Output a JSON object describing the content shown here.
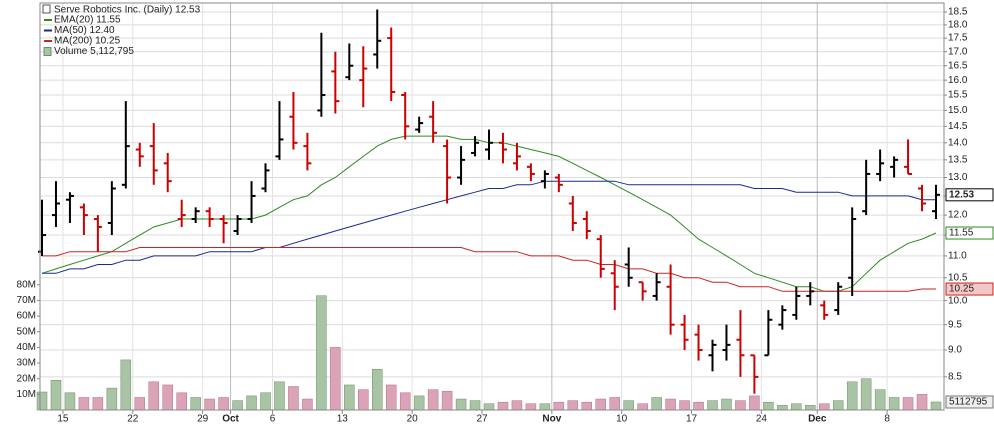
{
  "chart_data": {
    "type": "ohlc",
    "title": "Serve Robotics Inc. (Daily) 12.53",
    "categories": [
      null,
      null,
      "15",
      null,
      null,
      null,
      null,
      "22",
      null,
      null,
      null,
      null,
      "29",
      null,
      "Oct",
      null,
      null,
      "6",
      null,
      null,
      null,
      null,
      "13",
      null,
      null,
      null,
      null,
      "20",
      null,
      null,
      null,
      null,
      "27",
      null,
      null,
      null,
      null,
      "Nov",
      null,
      null,
      null,
      null,
      "10",
      null,
      null,
      null,
      null,
      "17",
      null,
      null,
      null,
      null,
      "24",
      null,
      null,
      null,
      "Dec",
      null,
      null,
      null,
      null,
      "8",
      null,
      null,
      null
    ],
    "open": [
      11.1,
      12.0,
      12.4,
      12.2,
      11.9,
      11.8,
      12.8,
      13.8,
      13.9,
      13.4,
      11.9,
      11.9,
      12.1,
      11.9,
      11.6,
      11.9,
      12.7,
      13.6,
      14.8,
      13.9,
      15.0,
      16.3,
      16.1,
      16.0,
      16.9,
      17.5,
      15.5,
      14.4,
      14.8,
      13.9,
      13.0,
      13.7,
      13.8,
      14.0,
      13.4,
      13.3,
      12.9,
      13.0,
      12.3,
      11.9,
      11.4,
      10.6,
      10.8,
      10.4,
      10.1,
      10.3,
      9.5,
      9.3,
      8.9,
      9.0,
      9.2,
      8.9,
      8.9,
      9.5,
      9.7,
      10.1,
      9.9,
      9.8,
      10.5,
      12.1,
      13.1,
      13.3,
      13.3,
      12.7,
      12.1
    ],
    "high": [
      12.4,
      12.9,
      12.6,
      12.3,
      12.0,
      12.9,
      15.3,
      14.0,
      14.6,
      13.7,
      12.4,
      12.2,
      12.2,
      12.0,
      12.0,
      12.9,
      13.4,
      15.3,
      15.6,
      14.3,
      17.7,
      17.0,
      17.3,
      17.2,
      18.6,
      17.9,
      15.6,
      14.8,
      15.3,
      14.1,
      13.9,
      14.2,
      14.4,
      14.3,
      14.0,
      13.4,
      13.2,
      13.1,
      12.5,
      12.1,
      11.5,
      10.9,
      11.2,
      10.4,
      10.6,
      10.8,
      9.7,
      9.5,
      9.2,
      9.5,
      9.8,
      8.9,
      9.8,
      9.9,
      10.3,
      10.4,
      10.0,
      10.4,
      12.2,
      13.5,
      13.8,
      13.6,
      14.1,
      12.8,
      12.8
    ],
    "low": [
      11.0,
      11.7,
      11.8,
      11.5,
      11.1,
      11.5,
      12.7,
      13.3,
      12.8,
      12.6,
      11.7,
      11.8,
      11.7,
      11.3,
      11.5,
      11.8,
      12.6,
      13.5,
      13.8,
      13.2,
      14.8,
      14.9,
      16.0,
      15.1,
      16.4,
      15.3,
      14.1,
      14.3,
      14.0,
      12.3,
      12.8,
      13.6,
      13.5,
      13.4,
      13.2,
      12.9,
      12.7,
      12.6,
      11.6,
      11.4,
      10.5,
      9.8,
      10.3,
      10.0,
      10.0,
      9.3,
      9.0,
      8.8,
      8.6,
      8.8,
      8.5,
      8.2,
      8.9,
      9.4,
      9.6,
      9.9,
      9.6,
      9.7,
      10.1,
      12.0,
      12.9,
      13.0,
      13.1,
      12.1,
      11.9
    ],
    "close": [
      11.5,
      12.3,
      12.5,
      12.0,
      11.7,
      12.7,
      13.9,
      13.6,
      13.2,
      12.9,
      12.0,
      12.1,
      11.9,
      11.8,
      11.9,
      12.5,
      13.2,
      14.1,
      14.0,
      13.4,
      15.5,
      15.3,
      16.5,
      16.4,
      17.4,
      15.6,
      14.5,
      14.6,
      14.3,
      13.0,
      13.5,
      14.0,
      14.0,
      13.8,
      13.6,
      13.1,
      13.1,
      12.8,
      11.8,
      11.6,
      10.7,
      10.3,
      10.5,
      10.2,
      10.4,
      9.5,
      9.2,
      9.0,
      9.1,
      9.1,
      8.9,
      8.5,
      9.6,
      9.8,
      10.1,
      10.2,
      9.7,
      10.3,
      11.9,
      13.1,
      13.4,
      13.5,
      13.1,
      12.3,
      12.53
    ],
    "up_color": "#000000",
    "down_color": "#cc0000",
    "overlays": [
      {
        "label": "EMA(20) 11.55",
        "color": "#2e8b22",
        "values": [
          10.6,
          10.7,
          10.8,
          10.9,
          11.0,
          11.1,
          11.3,
          11.5,
          11.7,
          11.8,
          11.9,
          11.9,
          11.9,
          11.9,
          11.9,
          11.9,
          12.0,
          12.2,
          12.4,
          12.5,
          12.8,
          13.0,
          13.3,
          13.6,
          13.9,
          14.1,
          14.2,
          14.2,
          14.2,
          14.2,
          14.1,
          14.1,
          14.0,
          14.0,
          13.9,
          13.8,
          13.7,
          13.6,
          13.4,
          13.2,
          13.0,
          12.8,
          12.6,
          12.4,
          12.2,
          12.0,
          11.7,
          11.4,
          11.2,
          11.0,
          10.8,
          10.6,
          10.5,
          10.4,
          10.3,
          10.3,
          10.2,
          10.2,
          10.3,
          10.6,
          10.9,
          11.1,
          11.3,
          11.4,
          11.55
        ],
        "tag": true
      },
      {
        "label": "MA(50) 12.40",
        "color": "#1c2a8c",
        "values": [
          10.6,
          10.6,
          10.7,
          10.7,
          10.8,
          10.8,
          10.9,
          10.9,
          11.0,
          11.0,
          11.0,
          11.0,
          11.1,
          11.1,
          11.1,
          11.1,
          11.2,
          11.2,
          11.3,
          11.4,
          11.5,
          11.6,
          11.7,
          11.8,
          11.9,
          12.0,
          12.1,
          12.2,
          12.3,
          12.4,
          12.5,
          12.6,
          12.7,
          12.7,
          12.8,
          12.8,
          12.9,
          12.9,
          12.9,
          12.9,
          12.9,
          12.9,
          12.8,
          12.8,
          12.8,
          12.8,
          12.8,
          12.8,
          12.8,
          12.8,
          12.8,
          12.7,
          12.7,
          12.7,
          12.6,
          12.6,
          12.6,
          12.6,
          12.5,
          12.5,
          12.5,
          12.5,
          12.5,
          12.4,
          12.4
        ],
        "tag": false
      },
      {
        "label": "MA(200) 10.25",
        "color": "#cc2222",
        "values": [
          11.0,
          11.0,
          11.1,
          11.1,
          11.1,
          11.1,
          11.1,
          11.2,
          11.2,
          11.2,
          11.2,
          11.2,
          11.2,
          11.2,
          11.2,
          11.2,
          11.2,
          11.2,
          11.2,
          11.2,
          11.2,
          11.2,
          11.2,
          11.2,
          11.2,
          11.2,
          11.2,
          11.2,
          11.2,
          11.2,
          11.2,
          11.1,
          11.1,
          11.1,
          11.1,
          11.0,
          11.0,
          11.0,
          10.9,
          10.9,
          10.8,
          10.8,
          10.7,
          10.7,
          10.6,
          10.6,
          10.5,
          10.5,
          10.4,
          10.4,
          10.3,
          10.3,
          10.3,
          10.2,
          10.2,
          10.2,
          10.2,
          10.2,
          10.2,
          10.2,
          10.2,
          10.2,
          10.2,
          10.25,
          10.25
        ],
        "tag": true
      }
    ],
    "volume": {
      "label": "Volume 5,112,795",
      "up_color": "#a9c4a4",
      "down_color": "#dba3b7",
      "values": [
        11500000,
        19000000,
        11000000,
        8000000,
        8000000,
        14000000,
        32000000,
        8000000,
        18000000,
        16000000,
        11000000,
        8000000,
        7000000,
        8000000,
        6000000,
        9000000,
        11000000,
        18000000,
        15000000,
        7000000,
        73000000,
        40000000,
        16000000,
        13000000,
        26000000,
        16000000,
        11000000,
        9000000,
        13000000,
        12000000,
        7000000,
        6000000,
        4000000,
        5000000,
        6000000,
        4000000,
        4000000,
        5000000,
        6000000,
        5000000,
        7000000,
        8000000,
        6000000,
        4000000,
        8000000,
        7000000,
        6000000,
        5000000,
        6000000,
        7000000,
        6000000,
        9000000,
        5000000,
        3000000,
        4000000,
        3000000,
        4000000,
        6000000,
        18000000,
        20000000,
        13000000,
        8000000,
        8000000,
        10000000,
        5112795
      ],
      "ylim": [
        0,
        260000000
      ],
      "yticks": [
        {
          "value": 10000000,
          "label": "10M"
        },
        {
          "value": 20000000,
          "label": "20M"
        },
        {
          "value": 30000000,
          "label": "30M"
        },
        {
          "value": 40000000,
          "label": "40M"
        },
        {
          "value": 50000000,
          "label": "50M"
        },
        {
          "value": 60000000,
          "label": "60M"
        },
        {
          "value": 70000000,
          "label": "70M"
        },
        {
          "value": 80000000,
          "label": "80M"
        }
      ]
    },
    "ylim": [
      7.92,
      18.86
    ],
    "log_scale": true,
    "yticks": [
      8.5,
      {
        "value": 9,
        "label": "9.0"
      },
      9.5,
      {
        "value": 10,
        "label": "10.0"
      },
      10.5,
      {
        "value": 11,
        "label": "11.0"
      },
      11.5,
      {
        "value": 12,
        "label": "12.0"
      },
      12.5,
      {
        "value": 13,
        "label": "13.0"
      },
      13.5,
      {
        "value": 14,
        "label": "14.0"
      },
      14.5,
      {
        "value": 15,
        "label": "15.0"
      },
      15.5,
      {
        "value": 16,
        "label": "16.0"
      },
      16.5,
      {
        "value": 17,
        "label": "17.0"
      },
      17.5,
      {
        "value": 18,
        "label": "18.0"
      },
      18.5
    ],
    "grid": true
  }
}
